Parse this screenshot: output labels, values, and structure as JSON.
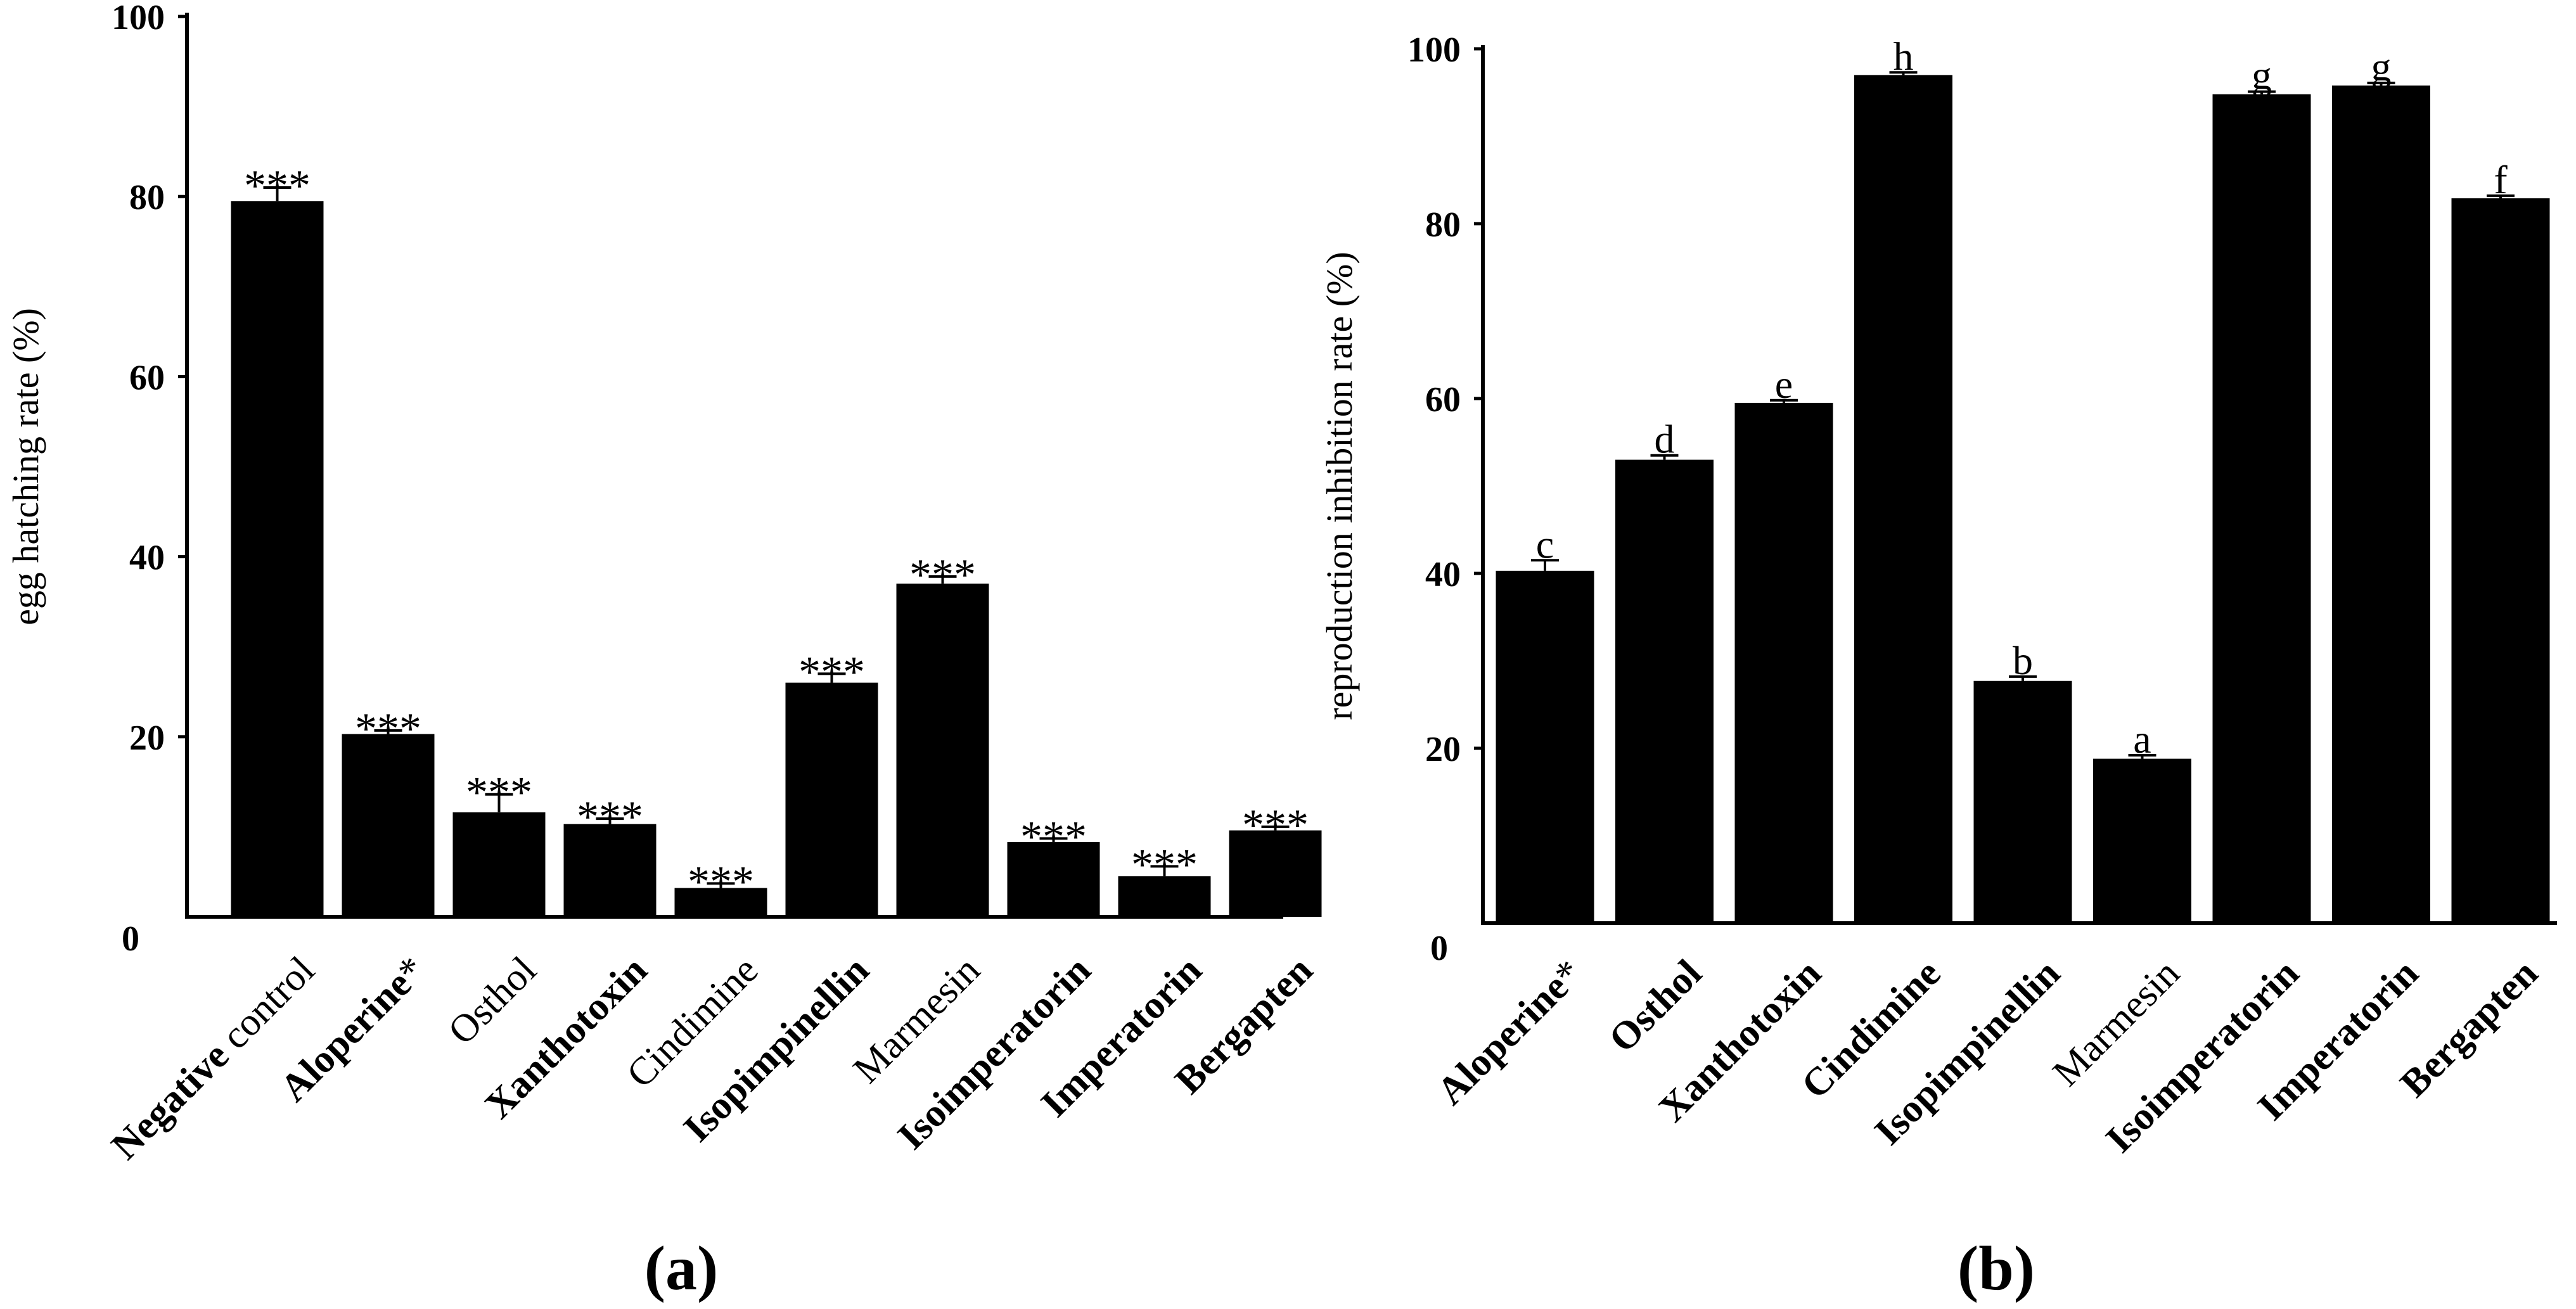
{
  "chart_data": [
    {
      "type": "bar",
      "panel_label": "(a)",
      "ylabel": "egg hatching rate (%)",
      "ylim": [
        0,
        100
      ],
      "yticks": [
        "0",
        "20",
        "40",
        "60",
        "80",
        "100"
      ],
      "categories": [
        {
          "label": "Negative control",
          "bold": "Negative",
          "plain": " control"
        },
        {
          "label": "Aloperine*",
          "bold": "Aloperine",
          "plain": "*"
        },
        {
          "label": "Osthol",
          "bold": "",
          "plain": "Osthol"
        },
        {
          "label": "Xanthotoxin",
          "bold": "Xanthotoxin",
          "plain": ""
        },
        {
          "label": "Cindimine",
          "bold": "",
          "plain": "Cindimine"
        },
        {
          "label": "Isopimpinellin",
          "bold": "Isopimpinellin",
          "plain": ""
        },
        {
          "label": "Marmesin",
          "bold": "",
          "plain": "Marmesin"
        },
        {
          "label": "Isoimperatorin",
          "bold": "Isoimperatorin",
          "plain": ""
        },
        {
          "label": "Imperatorin",
          "bold": "Imperatorin",
          "plain": ""
        },
        {
          "label": "Bergapten",
          "bold": "Bergapten",
          "plain": ""
        }
      ],
      "values": [
        79.5,
        20.3,
        11.6,
        10.3,
        3.2,
        26.0,
        37.0,
        8.3,
        4.5,
        9.6
      ],
      "errors": [
        1.5,
        0.4,
        2.0,
        0.6,
        0.5,
        1.0,
        0.8,
        0.4,
        1.1,
        0.4
      ],
      "annotations": [
        "***",
        "***",
        "***",
        "***",
        "***",
        "***",
        "***",
        "***",
        "***",
        "***"
      ]
    },
    {
      "type": "bar",
      "panel_label": "(b)",
      "ylabel": "reproduction inhibition rate (%)",
      "ylim": [
        0,
        100
      ],
      "yticks": [
        "0",
        "20",
        "40",
        "60",
        "80",
        "100"
      ],
      "categories": [
        {
          "label": "Aloperine*",
          "bold": "Aloperine",
          "plain": "*"
        },
        {
          "label": "Osthol",
          "bold": "Osthol",
          "plain": ""
        },
        {
          "label": "Xanthotoxin",
          "bold": "Xanthotoxin",
          "plain": ""
        },
        {
          "label": "Cindimine",
          "bold": "Cindimine",
          "plain": ""
        },
        {
          "label": "Isopimpinellin",
          "bold": "Isopimpinellin",
          "plain": ""
        },
        {
          "label": "Marmesin",
          "bold": "",
          "plain": "Marmesin"
        },
        {
          "label": "Isoimperatorin",
          "bold": "Isoimperatorin",
          "plain": ""
        },
        {
          "label": "Imperatorin",
          "bold": "Imperatorin",
          "plain": ""
        },
        {
          "label": "Bergapten",
          "bold": "Bergapten",
          "plain": ""
        }
      ],
      "values": [
        40.3,
        53.0,
        59.5,
        97.0,
        27.7,
        18.8,
        94.8,
        95.8,
        82.9
      ],
      "errors": [
        1.2,
        0.5,
        0.3,
        0.3,
        0.5,
        0.4,
        0.3,
        0.3,
        0.3
      ],
      "annotations": [
        "c",
        "d",
        "e",
        "h",
        "b",
        "a",
        "g",
        "g",
        "f"
      ]
    }
  ]
}
